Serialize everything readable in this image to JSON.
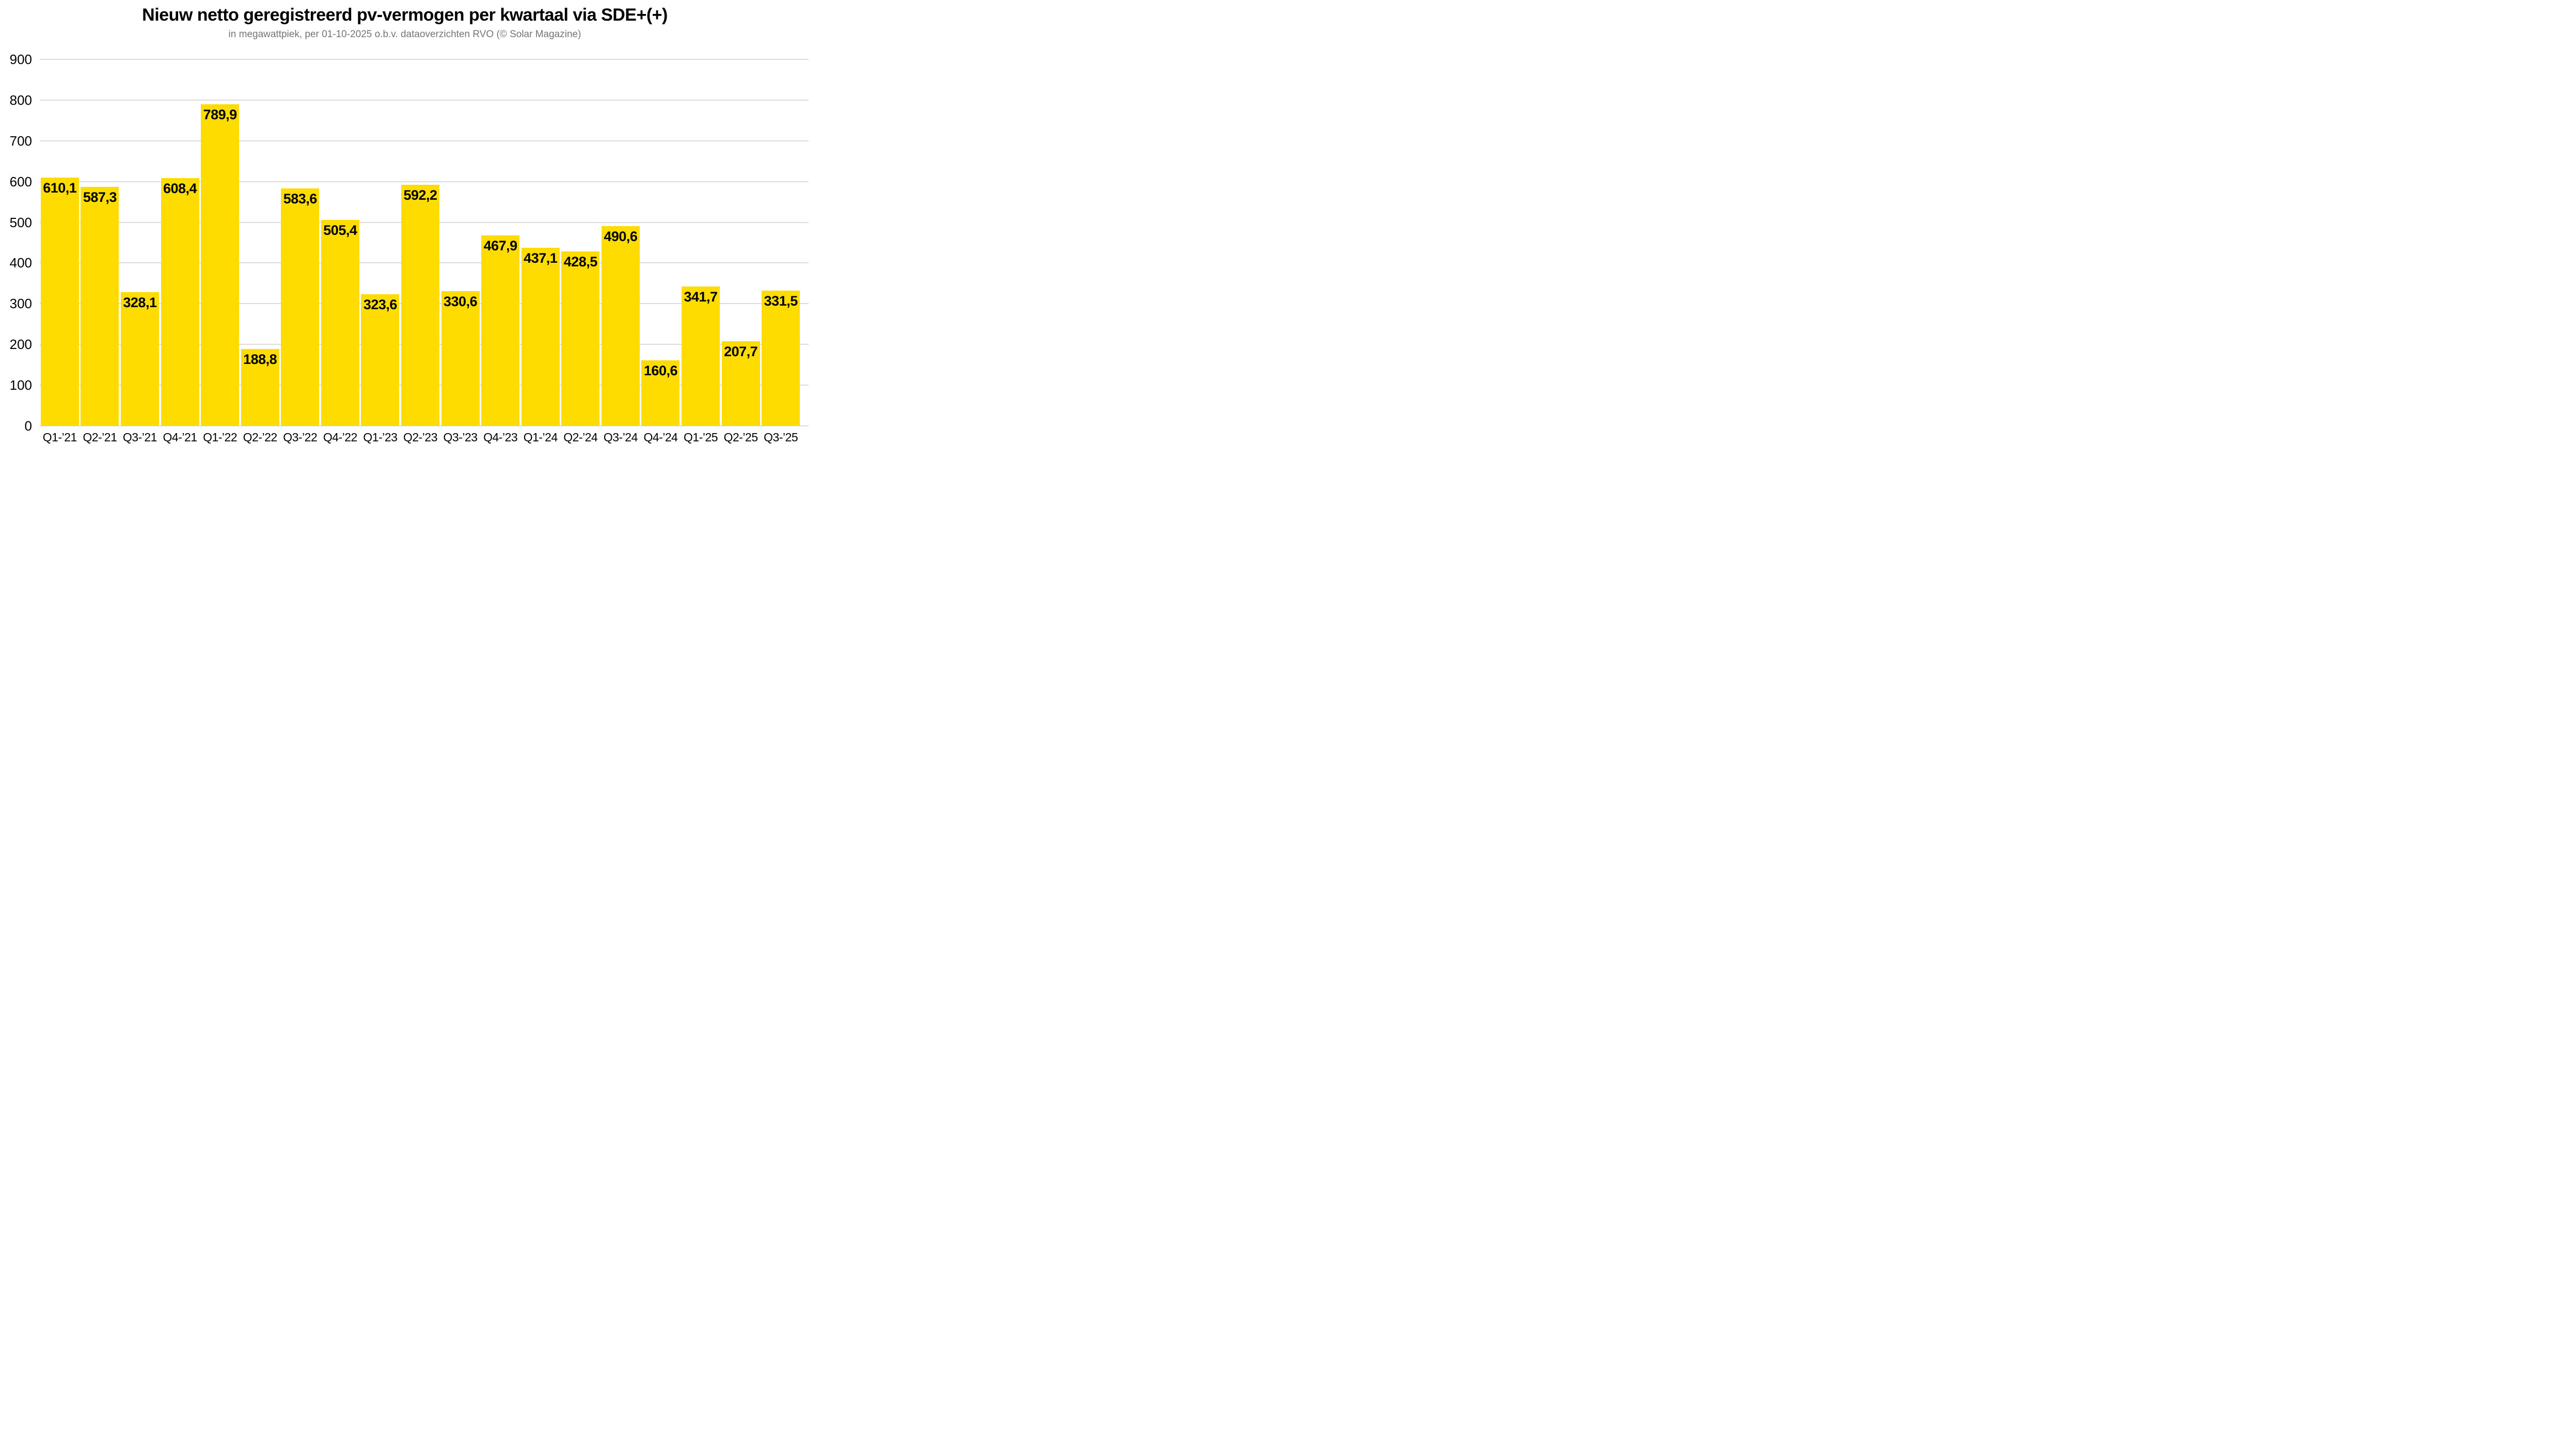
{
  "title": "Nieuw netto geregistreerd pv-vermogen per kwartaal via SDE+(+)",
  "subtitle": "in megawattpiek, per 01-10-2025 o.b.v. dataoverzichten RVO (© Solar Magazine)",
  "chart_data": {
    "type": "bar",
    "categories": [
      "Q1-’21",
      "Q2-’21",
      "Q3-’21",
      "Q4-’21",
      "Q1-’22",
      "Q2-’22",
      "Q3-’22",
      "Q4-’22",
      "Q1-’23",
      "Q2-’23",
      "Q3-’23",
      "Q4-’23",
      "Q1-’24",
      "Q2-’24",
      "Q3-’24",
      "Q4-’24",
      "Q1-’25",
      "Q2-’25",
      "Q3-’25"
    ],
    "values": [
      610.1,
      587.3,
      328.1,
      608.4,
      789.9,
      188.8,
      583.6,
      505.4,
      323.6,
      592.2,
      330.6,
      467.9,
      437.1,
      428.5,
      490.6,
      160.6,
      341.7,
      207.7,
      331.5
    ],
    "value_labels": [
      "610,1",
      "587,3",
      "328,1",
      "608,4",
      "789,9",
      "188,8",
      "583,6",
      "505,4",
      "323,6",
      "592,2",
      "330,6",
      "467,9",
      "437,1",
      "428,5",
      "490,6",
      "160,6",
      "341,7",
      "207,7",
      "331,5"
    ],
    "title": "Nieuw netto geregistreerd pv-vermogen per kwartaal via SDE+(+)",
    "subtitle": "in megawattpiek, per 01-10-2025 o.b.v. dataoverzichten RVO (© Solar Magazine)",
    "xlabel": "",
    "ylabel": "",
    "ylim": [
      0,
      900
    ],
    "ytick_step": 100,
    "yticks": [
      "0",
      "100",
      "200",
      "300",
      "400",
      "500",
      "600",
      "700",
      "800",
      "900"
    ],
    "grid": true,
    "legend": false,
    "colors": {
      "bar": "#FFDC00",
      "value_label": "#000000",
      "grid": "#DCDCDC",
      "axis_text": "#000000",
      "title": "#000000",
      "subtitle": "#757575",
      "background": "#FFFFFF"
    }
  }
}
